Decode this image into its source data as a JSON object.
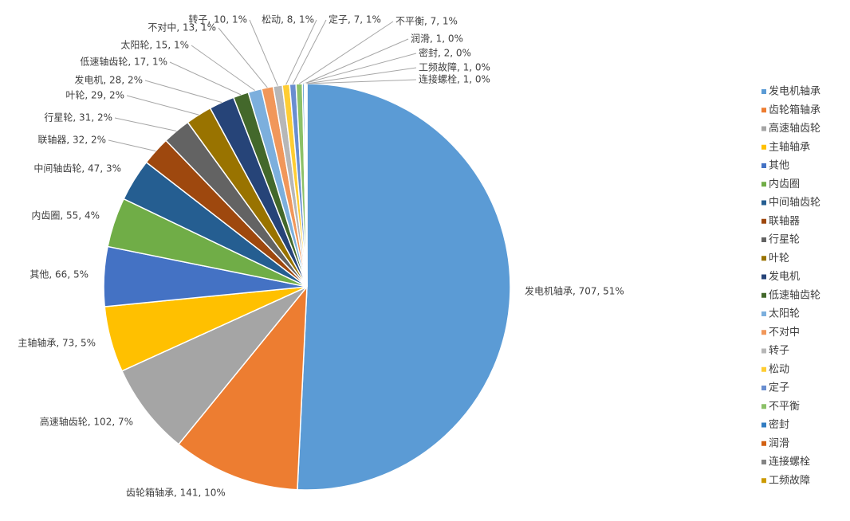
{
  "chart_data": {
    "type": "pie",
    "categories": [
      "发电机轴承",
      "齿轮箱轴承",
      "高速轴齿轮",
      "主轴轴承",
      "其他",
      "内齿圈",
      "中间轴齿轮",
      "联轴器",
      "行星轮",
      "叶轮",
      "发电机",
      "低速轴齿轮",
      "太阳轮",
      "不对中",
      "转子",
      "松动",
      "定子",
      "不平衡",
      "密封",
      "润滑",
      "连接螺栓",
      "工频故障"
    ],
    "values": [
      707,
      141,
      102,
      73,
      66,
      55,
      47,
      32,
      31,
      29,
      28,
      17,
      15,
      13,
      10,
      8,
      7,
      7,
      2,
      1,
      1,
      1
    ],
    "value_labels": [
      "发电机轴承, 707, 51%",
      "齿轮箱轴承, 141, 10%",
      "高速轴齿轮, 102, 7%",
      "主轴轴承, 73, 5%",
      "其他, 66, 5%",
      "内齿圈, 55, 4%",
      "中间轴齿轮, 47, 3%",
      "联轴器, 32, 2%",
      "行星轮, 31, 2%",
      "叶轮, 29, 2%",
      "发电机, 28, 2%",
      "低速轴齿轮, 17, 1%",
      "太阳轮, 15, 1%",
      "不对中, 13, 1%",
      "转子, 10, 1%",
      "松动, 8, 1%",
      "定子, 7, 1%",
      "不平衡, 7, 1%",
      "密封, 2, 0%",
      "润滑, 1, 0%",
      "连接螺栓, 1, 0%",
      "工频故障, 1, 0%"
    ],
    "colors": [
      "#5b9bd5",
      "#ed7d31",
      "#a5a5a5",
      "#ffc000",
      "#4472c4",
      "#70ad47",
      "#255e91",
      "#9e480e",
      "#636363",
      "#997300",
      "#264478",
      "#43682b",
      "#7cafdd",
      "#f1975a",
      "#b7b7b7",
      "#ffcd33",
      "#698ed0",
      "#8cc168",
      "#327dc2",
      "#d26012",
      "#848484",
      "#cc9a00"
    ],
    "legend": "right"
  }
}
